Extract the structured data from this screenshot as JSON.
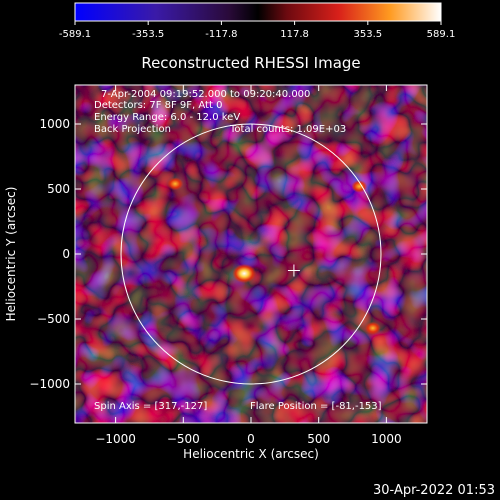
{
  "colorbar": {
    "ticks": [
      "-589.1",
      "-353.5",
      "-117.8",
      "117.8",
      "353.5",
      "589.1"
    ],
    "range": [
      -589.1,
      589.1
    ]
  },
  "title": "Reconstructed RHESSI Image",
  "info": {
    "time": "7-Apr-2004 09:19:52.000 to 09:20:40.000",
    "detectors": "Detectors: 7F 8F 9F, Att 0",
    "energy": "Energy Range: 6.0 - 12.0 keV",
    "method": "Back Projection",
    "counts": "Total counts: 1.09E+03"
  },
  "footer": {
    "spin_axis": "Spin Axis = [317,-127]",
    "flare_position": "Flare Position = [-81,-153]"
  },
  "timestamp": "30-Apr-2022 01:53",
  "chart_data": {
    "type": "heatmap",
    "title": "Reconstructed RHESSI Image",
    "xlabel": "Heliocentric X (arcsec)",
    "ylabel": "Heliocentric Y (arcsec)",
    "xlim": [
      -1300,
      1300
    ],
    "ylim": [
      -1300,
      1300
    ],
    "xticks": [
      -1000,
      -500,
      0,
      500,
      1000
    ],
    "yticks": [
      -1000,
      -500,
      0,
      500,
      1000
    ],
    "xtick_labels": [
      "−1000",
      "−500",
      "0",
      "500",
      "1000"
    ],
    "ytick_labels": [
      "−1000",
      "−500",
      "0",
      "500",
      "1000"
    ],
    "solar_limb_radius": 960,
    "solar_limb_center": [
      0,
      0
    ],
    "spin_axis": [
      317,
      -127
    ],
    "bright_sources": [
      {
        "x": -50,
        "y": -150,
        "level": "high"
      },
      {
        "x": -560,
        "y": 540,
        "level": "medium"
      },
      {
        "x": 800,
        "y": 520,
        "level": "medium"
      },
      {
        "x": 900,
        "y": -570,
        "level": "medium"
      }
    ],
    "colormap": "blue-purple-red-yellow-white",
    "grid": false,
    "legend": "colorbar top"
  }
}
